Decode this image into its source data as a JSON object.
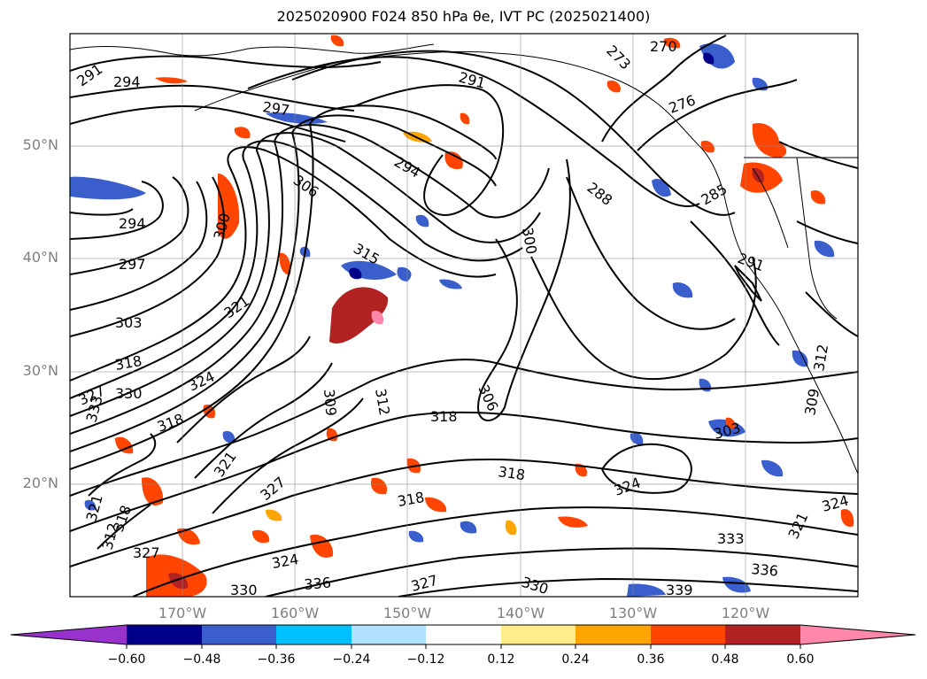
{
  "title": "2025020900 F024 850 hPa θe, IVT PC (2025021400)",
  "lat_labels": [
    "50°N",
    "40°N",
    "30°N",
    "20°N"
  ],
  "lon_labels": [
    "170°W",
    "160°W",
    "150°W",
    "140°W",
    "130°W",
    "120°W"
  ],
  "colorbar": {
    "ticks": [
      "−0.60",
      "−0.48",
      "−0.36",
      "−0.24",
      "−0.12",
      "0.12",
      "0.24",
      "0.36",
      "0.48",
      "0.60"
    ],
    "colors": [
      "#9932cc",
      "#00008b",
      "#3a5fcd",
      "#00bfff",
      "#b0e2ff",
      "#ffffff",
      "#ffec8b",
      "#ffa500",
      "#ff4500",
      "#b22222",
      "#ff88aa"
    ]
  },
  "contour_labels": [
    "291",
    "294",
    "297",
    "291",
    "273",
    "270",
    "276",
    "294",
    "306",
    "288",
    "285",
    "300",
    "294",
    "297",
    "303",
    "321",
    "315",
    "300",
    "291",
    "318",
    "327",
    "330",
    "324",
    "333",
    "309",
    "312",
    "306",
    "318",
    "303",
    "318",
    "318",
    "324",
    "321",
    "327",
    "321",
    "312",
    "318",
    "318",
    "327",
    "324",
    "336",
    "330",
    "327",
    "330",
    "339",
    "333",
    "336",
    "321",
    "324",
    "312",
    "309"
  ]
}
